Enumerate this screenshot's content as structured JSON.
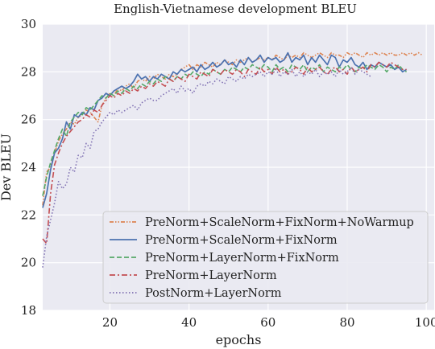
{
  "chart_data": {
    "type": "line",
    "title": "English-Vietnamese development BLEU",
    "xlabel": "epochs",
    "ylabel": "Dev BLEU",
    "xlim": [
      3,
      102
    ],
    "ylim": [
      18,
      30
    ],
    "xticks": [
      20,
      40,
      60,
      80,
      100
    ],
    "yticks": [
      18,
      20,
      22,
      24,
      26,
      28,
      30
    ],
    "grid": true,
    "legend_position": "lower-right",
    "background": "#eaeaf2",
    "series": [
      {
        "name": "PreNorm+ScaleNorm+FixNorm+NoWarmup",
        "color": "#dd8452",
        "dash": "dashdotdot",
        "x": [
          3,
          4,
          5,
          6,
          7,
          8,
          9,
          10,
          11,
          12,
          13,
          14,
          15,
          16,
          17,
          18,
          19,
          20,
          21,
          22,
          23,
          24,
          25,
          26,
          27,
          28,
          29,
          30,
          31,
          32,
          33,
          34,
          35,
          36,
          37,
          38,
          39,
          40,
          41,
          42,
          43,
          44,
          45,
          46,
          47,
          48,
          49,
          50,
          51,
          52,
          53,
          54,
          55,
          56,
          57,
          58,
          59,
          60,
          61,
          62,
          63,
          64,
          65,
          66,
          67,
          68,
          69,
          70,
          71,
          72,
          73,
          74,
          75,
          76,
          77,
          78,
          79,
          80,
          81,
          82,
          83,
          84,
          85,
          86,
          87,
          88,
          89,
          90,
          91,
          92,
          93,
          94,
          95,
          96,
          97,
          98,
          99
        ],
        "y": [
          22.4,
          23.8,
          24.0,
          24.6,
          25.1,
          25.4,
          25.6,
          25.9,
          25.8,
          26.1,
          26.2,
          26.4,
          26.3,
          26.1,
          25.9,
          26.6,
          26.9,
          27.1,
          27.0,
          27.3,
          27.2,
          27.4,
          27.5,
          27.3,
          27.6,
          27.7,
          27.6,
          27.8,
          27.7,
          27.9,
          27.8,
          27.7,
          27.9,
          27.8,
          27.9,
          28.1,
          28.2,
          28.3,
          28.1,
          28.3,
          28.2,
          28.4,
          28.3,
          28.2,
          28.4,
          28.3,
          28.5,
          28.4,
          28.3,
          28.5,
          28.4,
          28.5,
          28.6,
          28.4,
          28.5,
          28.6,
          28.5,
          28.6,
          28.5,
          28.7,
          28.6,
          28.5,
          28.7,
          28.6,
          28.7,
          28.6,
          28.8,
          28.7,
          28.6,
          28.7,
          28.8,
          28.7,
          28.6,
          28.8,
          28.7,
          28.7,
          28.6,
          28.8,
          28.7,
          28.8,
          28.7,
          28.6,
          28.8,
          28.7,
          28.8,
          28.7,
          28.8,
          28.7,
          28.8,
          28.7,
          28.7,
          28.8,
          28.7,
          28.8,
          28.7,
          28.8,
          28.7
        ]
      },
      {
        "name": "PreNorm+ScaleNorm+FixNorm",
        "color": "#4c72b0",
        "dash": "solid",
        "x": [
          3,
          4,
          5,
          6,
          7,
          8,
          9,
          10,
          11,
          12,
          13,
          14,
          15,
          16,
          17,
          18,
          19,
          20,
          21,
          22,
          23,
          24,
          25,
          26,
          27,
          28,
          29,
          30,
          31,
          32,
          33,
          34,
          35,
          36,
          37,
          38,
          39,
          40,
          41,
          42,
          43,
          44,
          45,
          46,
          47,
          48,
          49,
          50,
          51,
          52,
          53,
          54,
          55,
          56,
          57,
          58,
          59,
          60,
          61,
          62,
          63,
          64,
          65,
          66,
          67,
          68,
          69,
          70,
          71,
          72,
          73,
          74,
          75,
          76,
          77,
          78,
          79,
          80,
          81,
          82,
          83,
          84,
          85,
          86,
          87,
          88,
          89,
          90,
          91,
          92,
          93,
          94,
          95
        ],
        "y": [
          22.3,
          22.9,
          23.9,
          24.6,
          24.8,
          25.2,
          25.9,
          25.6,
          26.2,
          26.1,
          26.3,
          26.2,
          26.5,
          26.4,
          26.8,
          26.9,
          27.1,
          27.0,
          27.2,
          27.3,
          27.4,
          27.3,
          27.4,
          27.6,
          27.9,
          27.7,
          27.8,
          27.6,
          27.8,
          27.7,
          27.9,
          27.8,
          27.7,
          28.0,
          27.9,
          28.1,
          28.0,
          28.1,
          28.2,
          28.0,
          28.3,
          28.1,
          28.2,
          28.4,
          28.2,
          28.3,
          28.5,
          28.3,
          28.4,
          28.2,
          28.5,
          28.3,
          28.6,
          28.4,
          28.5,
          28.7,
          28.4,
          28.6,
          28.5,
          28.6,
          28.4,
          28.5,
          28.8,
          28.4,
          28.6,
          28.5,
          28.7,
          28.3,
          28.6,
          28.4,
          28.7,
          28.5,
          28.3,
          28.7,
          28.6,
          28.2,
          28.5,
          28.4,
          28.6,
          28.3,
          28.2,
          28.4,
          28.1,
          28.3,
          28.2,
          28.4,
          28.3,
          28.2,
          28.3,
          28.1,
          28.2,
          28.0,
          28.1
        ]
      },
      {
        "name": "PreNorm+LayerNorm+FixNorm",
        "color": "#55a868",
        "dash": "dashed",
        "x": [
          3,
          4,
          5,
          6,
          7,
          8,
          9,
          10,
          11,
          12,
          13,
          14,
          15,
          16,
          17,
          18,
          19,
          20,
          21,
          22,
          23,
          24,
          25,
          26,
          27,
          28,
          29,
          30,
          31,
          32,
          33,
          34,
          35,
          36,
          37,
          38,
          39,
          40,
          41,
          42,
          43,
          44,
          45,
          46,
          47,
          48,
          49,
          50,
          51,
          52,
          53,
          54,
          55,
          56,
          57,
          58,
          59,
          60,
          61,
          62,
          63,
          64,
          65,
          66,
          67,
          68,
          69,
          70,
          71,
          72,
          73,
          74,
          75,
          76,
          77,
          78,
          79,
          80,
          81,
          82,
          83,
          84,
          85,
          86,
          87,
          88,
          89,
          90,
          91,
          92,
          93,
          94,
          95
        ],
        "y": [
          22.8,
          23.6,
          24.2,
          24.7,
          25.2,
          25.6,
          25.3,
          25.9,
          26.1,
          26.3,
          26.2,
          26.5,
          26.4,
          26.6,
          26.8,
          27.0,
          26.9,
          27.1,
          27.0,
          27.2,
          27.1,
          27.3,
          27.2,
          27.4,
          27.3,
          27.5,
          27.4,
          27.6,
          27.5,
          27.7,
          27.6,
          27.8,
          27.7,
          27.6,
          27.8,
          27.7,
          27.9,
          27.8,
          28.0,
          27.9,
          27.8,
          28.0,
          27.9,
          28.1,
          28.0,
          27.9,
          28.1,
          28.0,
          28.2,
          28.1,
          28.0,
          28.2,
          28.1,
          28.3,
          28.2,
          28.1,
          28.3,
          28.2,
          28.0,
          28.3,
          28.1,
          28.2,
          28.0,
          28.3,
          28.2,
          28.1,
          28.3,
          28.0,
          28.2,
          28.1,
          28.3,
          28.0,
          28.2,
          28.1,
          28.0,
          28.2,
          28.1,
          28.3,
          28.1,
          28.0,
          28.2,
          28.1,
          28.3,
          28.2,
          28.1,
          28.3,
          28.2,
          28.0,
          28.2,
          28.1,
          28.3,
          28.1,
          28.0
        ]
      },
      {
        "name": "PreNorm+LayerNorm",
        "color": "#c44e52",
        "dash": "dashdot",
        "x": [
          3,
          4,
          5,
          6,
          7,
          8,
          9,
          10,
          11,
          12,
          13,
          14,
          15,
          16,
          17,
          18,
          19,
          20,
          21,
          22,
          23,
          24,
          25,
          26,
          27,
          28,
          29,
          30,
          31,
          32,
          33,
          34,
          35,
          36,
          37,
          38,
          39,
          40,
          41,
          42,
          43,
          44,
          45,
          46,
          47,
          48,
          49,
          50,
          51,
          52,
          53,
          54,
          55,
          56,
          57,
          58,
          59,
          60,
          61,
          62,
          63,
          64,
          65,
          66,
          67,
          68,
          69,
          70,
          71,
          72,
          73,
          74,
          75,
          76,
          77,
          78,
          79,
          80,
          81,
          82,
          83,
          84,
          85,
          86,
          87,
          88,
          89,
          90,
          91,
          92,
          93,
          94,
          95
        ],
        "y": [
          21.0,
          20.8,
          22.9,
          24.1,
          24.6,
          25.0,
          25.3,
          25.5,
          25.7,
          25.9,
          26.0,
          26.2,
          26.1,
          26.4,
          26.3,
          26.6,
          26.8,
          27.0,
          26.9,
          27.1,
          27.0,
          27.2,
          27.1,
          27.3,
          27.2,
          27.4,
          27.3,
          27.5,
          27.4,
          27.6,
          27.5,
          27.4,
          27.7,
          27.6,
          27.8,
          27.7,
          27.6,
          27.9,
          27.8,
          27.7,
          28.0,
          27.9,
          27.8,
          28.1,
          28.0,
          27.9,
          28.1,
          28.0,
          27.9,
          28.1,
          28.0,
          27.8,
          28.1,
          28.0,
          27.9,
          28.2,
          28.0,
          28.1,
          27.9,
          28.2,
          28.0,
          28.1,
          27.9,
          28.0,
          28.2,
          28.1,
          27.9,
          28.2,
          28.0,
          28.1,
          28.2,
          28.0,
          27.9,
          28.1,
          28.2,
          28.0,
          28.1,
          27.9,
          28.2,
          28.0,
          28.1,
          28.2,
          28.0,
          28.3,
          28.2,
          28.4,
          28.3,
          28.2,
          28.4,
          28.3,
          28.2,
          28.1,
          28.1
        ]
      },
      {
        "name": "PostNorm+LayerNorm",
        "color": "#8172b3",
        "dash": "dotted",
        "x": [
          3,
          4,
          5,
          6,
          7,
          8,
          9,
          10,
          11,
          12,
          13,
          14,
          15,
          16,
          17,
          18,
          19,
          20,
          21,
          22,
          23,
          24,
          25,
          26,
          27,
          28,
          29,
          30,
          31,
          32,
          33,
          34,
          35,
          36,
          37,
          38,
          39,
          40,
          41,
          42,
          43,
          44,
          45,
          46,
          47,
          48,
          49,
          50,
          51,
          52,
          53,
          54,
          55,
          56,
          57,
          58,
          59,
          60,
          61,
          62,
          63,
          64,
          65,
          66,
          67,
          68,
          69,
          70,
          71,
          72,
          73,
          74,
          75,
          76,
          77,
          78,
          79,
          80,
          81,
          82,
          83,
          84,
          85,
          86
        ],
        "y": [
          19.8,
          21.1,
          21.8,
          22.5,
          23.4,
          23.1,
          23.3,
          24.0,
          23.8,
          24.5,
          24.4,
          25.0,
          24.8,
          25.5,
          25.6,
          25.9,
          26.1,
          26.3,
          26.2,
          26.4,
          26.3,
          26.4,
          26.5,
          26.6,
          26.4,
          26.7,
          26.8,
          26.9,
          26.8,
          26.8,
          27.0,
          27.1,
          27.2,
          27.3,
          27.1,
          27.4,
          27.2,
          27.3,
          27.1,
          27.4,
          27.5,
          27.4,
          27.6,
          27.5,
          27.7,
          27.6,
          27.5,
          27.8,
          27.7,
          27.6,
          27.8,
          27.7,
          27.9,
          27.8,
          27.9,
          28.0,
          27.8,
          28.0,
          27.9,
          28.1,
          27.8,
          28.0,
          27.9,
          28.1,
          27.8,
          28.0,
          27.8,
          28.0,
          27.9,
          28.1,
          27.8,
          28.0,
          27.9,
          28.0,
          27.8,
          28.1,
          27.9,
          28.0,
          28.2,
          27.9,
          28.1,
          28.0,
          27.9,
          27.8
        ]
      }
    ]
  }
}
